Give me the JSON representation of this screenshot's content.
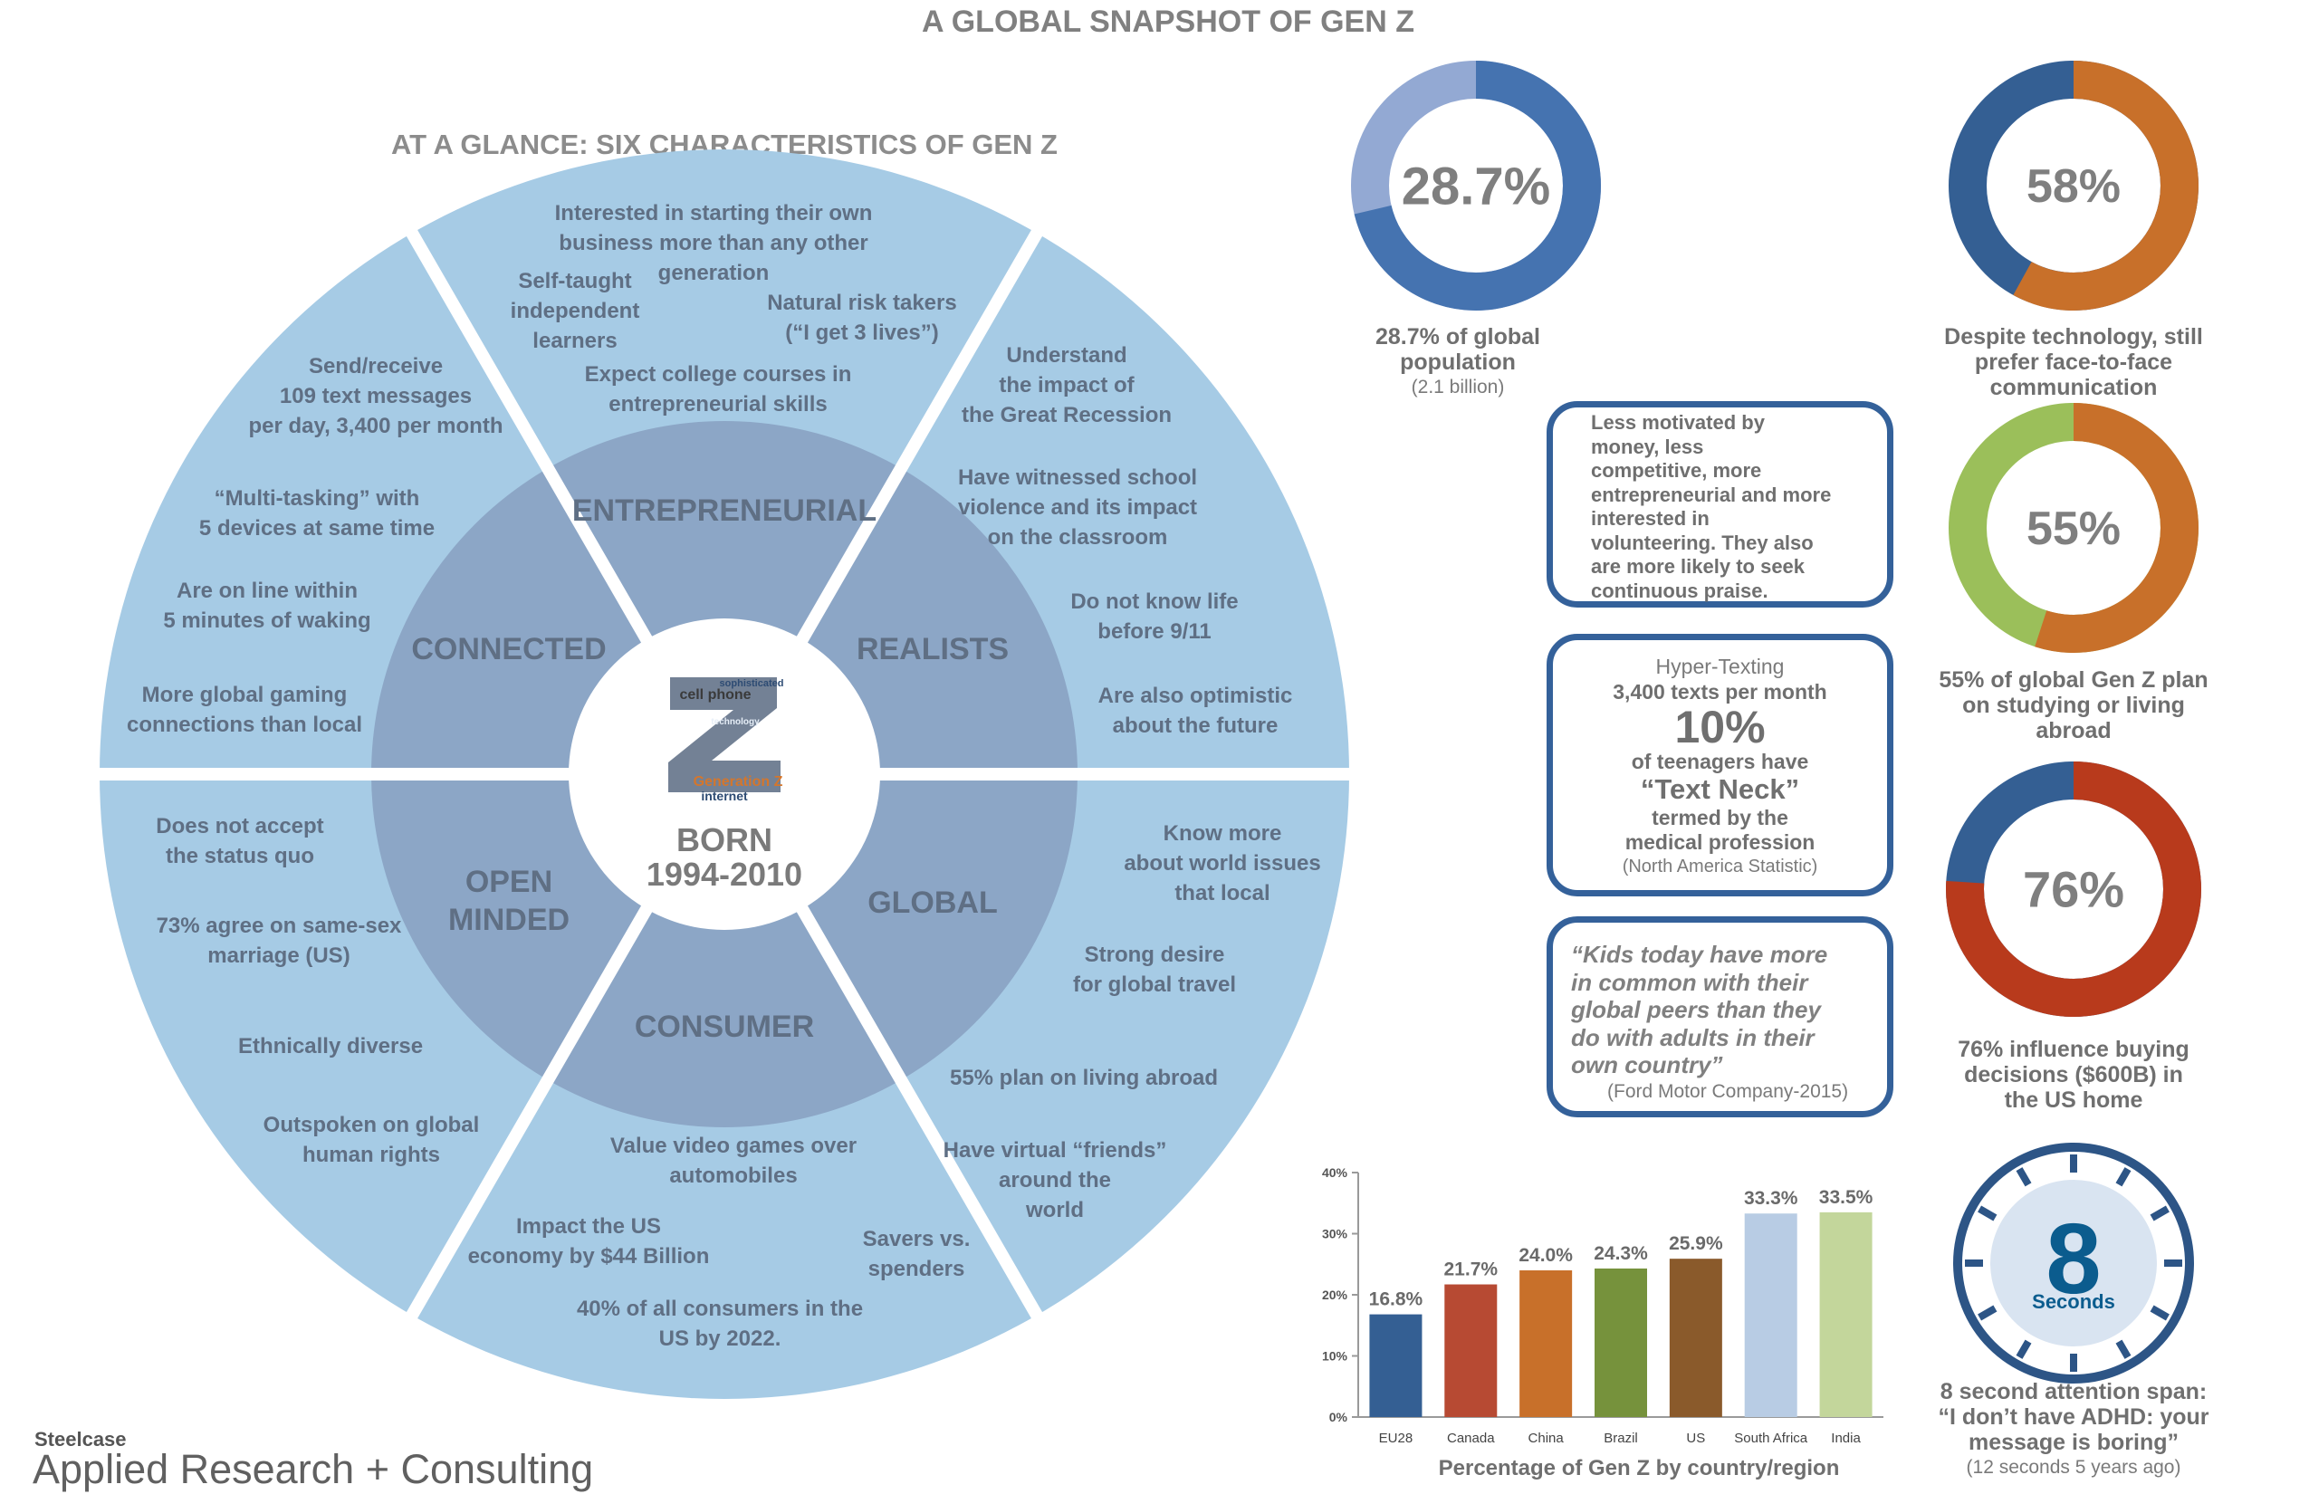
{
  "title": "A GLOBAL SNAPSHOT OF GEN Z",
  "wheel": {
    "subtitle": "AT A GLANCE:  SIX CHARACTERISTICS OF GEN Z",
    "center": {
      "born": "BORN",
      "years": "1994-2010",
      "cloud": [
        "sophisticated",
        "cell phone",
        "technology",
        "Generation Z",
        "internet"
      ]
    },
    "sectors": {
      "entrepreneurial": {
        "label": "ENTREPRENEURIAL",
        "facts": [
          [
            "Interested in starting their own",
            "business more than any other",
            "generation"
          ],
          [
            "Self-taught",
            "independent",
            "learners"
          ],
          [
            "Natural risk takers",
            "(“I get 3 lives”)"
          ],
          [
            "Expect college courses in",
            "entrepreneurial skills"
          ]
        ]
      },
      "realists": {
        "label": "REALISTS",
        "facts": [
          [
            "Understand",
            "the impact of",
            "the Great  Recession"
          ],
          [
            "Have witnessed  school",
            "violence and its impact",
            "on the classroom"
          ],
          [
            "Do not know life",
            "before  9/11"
          ],
          [
            "Are also optimistic",
            "about  the future"
          ]
        ]
      },
      "global": {
        "label": "GLOBAL",
        "facts": [
          [
            "Know more",
            "about world issues",
            "that local"
          ],
          [
            "Strong desire",
            "for global travel"
          ],
          [
            "55% plan on living abroad"
          ],
          [
            "Have virtual “friends”",
            "around the",
            "world"
          ]
        ]
      },
      "consumer": {
        "label": "CONSUMER",
        "facts": [
          [
            "Value video games over",
            "automobiles"
          ],
          [
            "Impact  the US",
            "economy by $44 Billion"
          ],
          [
            "Savers vs.",
            "spenders"
          ],
          [
            "40% of all consumers in the",
            "US by 2022."
          ]
        ]
      },
      "open_minded": {
        "label_lines": [
          "OPEN",
          "MINDED"
        ],
        "facts": [
          [
            "Does not accept",
            "the status quo"
          ],
          [
            "73% agree on same-sex",
            "marriage (US)"
          ],
          [
            "Ethnically diverse"
          ],
          [
            "Outspoken on global",
            "human rights"
          ]
        ]
      },
      "connected": {
        "label": "CONNECTED",
        "facts": [
          [
            "Send/receive",
            "109 text messages",
            "per day, 3,400 per month"
          ],
          [
            "“Multi-tasking” with",
            "5 devices at  same time"
          ],
          [
            "Are on line within",
            "5 minutes of waking"
          ],
          [
            "More global gaming",
            "connections than local"
          ]
        ]
      }
    }
  },
  "stats": {
    "population": {
      "value": 28.7,
      "label": "28.7%",
      "caption": [
        "28.7% of global",
        "population"
      ],
      "sub": "(2.1 billion)",
      "colors": [
        "#4573b0",
        "#93a9d3"
      ]
    },
    "face": {
      "value": 58,
      "label": "58%",
      "caption": [
        "Despite technology,  still",
        "prefer face-to-face",
        "communication"
      ],
      "colors": [
        "#c8702a",
        "#345f93"
      ]
    },
    "abroad": {
      "value": 55,
      "label": "55%",
      "caption": [
        "55% of global Gen Z plan",
        "on studying or living",
        "abroad"
      ],
      "colors": [
        "#c8702a",
        "#9bbf5a"
      ]
    },
    "buying": {
      "value": 76,
      "label": "76%",
      "caption": [
        "76% influence buying",
        "decisions ($600B) in",
        "the US home"
      ],
      "colors": [
        "#b83a1c",
        "#345f93"
      ]
    },
    "attention": {
      "number": "8",
      "unit": "Seconds",
      "caption": [
        "8 second attention span:",
        "“I don’t have ADHD:  your",
        "message is boring”"
      ],
      "sub": "(12 seconds 5 years ago)",
      "colors": [
        "#2d5586",
        "#0b5c8e",
        "#d9e4f1"
      ]
    }
  },
  "boxes": {
    "motivation": [
      "Less motivated  by",
      "money,  less",
      "competitive,  more",
      "entrepreneurial and more",
      "interested in",
      "volunteering. They also",
      "are more likely to  seek",
      "continuous praise."
    ],
    "texting": {
      "heading": "Hyper-Texting",
      "line1": "3,400 texts per month",
      "big": "10%",
      "line2": "of teenagers have",
      "neck": "“Text Neck”",
      "line3": "termed by the",
      "line4": "medical profession",
      "source": "(North America Statistic)"
    },
    "quote": {
      "lines": [
        "“Kids today have more",
        "in common with their",
        "global peers than they",
        "do with adults in their",
        "own country”"
      ],
      "source": "(Ford Motor Company-2015)"
    }
  },
  "chart_data": {
    "type": "bar",
    "title": "Percentage of Gen Z by country/region",
    "categories": [
      "EU28",
      "Canada",
      "China",
      "Brazil",
      "US",
      "South Africa",
      "India"
    ],
    "values": [
      16.8,
      21.7,
      24.0,
      24.3,
      25.9,
      33.3,
      33.5
    ],
    "value_labels": [
      "16.8%",
      "21.7%",
      "24.0%",
      "24.3%",
      "25.9%",
      "33.3%",
      "33.5%"
    ],
    "colors": [
      "#345f93",
      "#b74a33",
      "#c8702a",
      "#76923c",
      "#8a5a2b",
      "#b8cce4",
      "#c3d69b"
    ],
    "ylim": [
      0,
      40
    ],
    "yticks": [
      0,
      10,
      20,
      30,
      40
    ],
    "ytick_labels": [
      "0%",
      "10%",
      "20%",
      "30%",
      "40%"
    ],
    "grid": false
  },
  "footer": {
    "brand": "Steelcase",
    "division": "Applied Research + Consulting"
  }
}
